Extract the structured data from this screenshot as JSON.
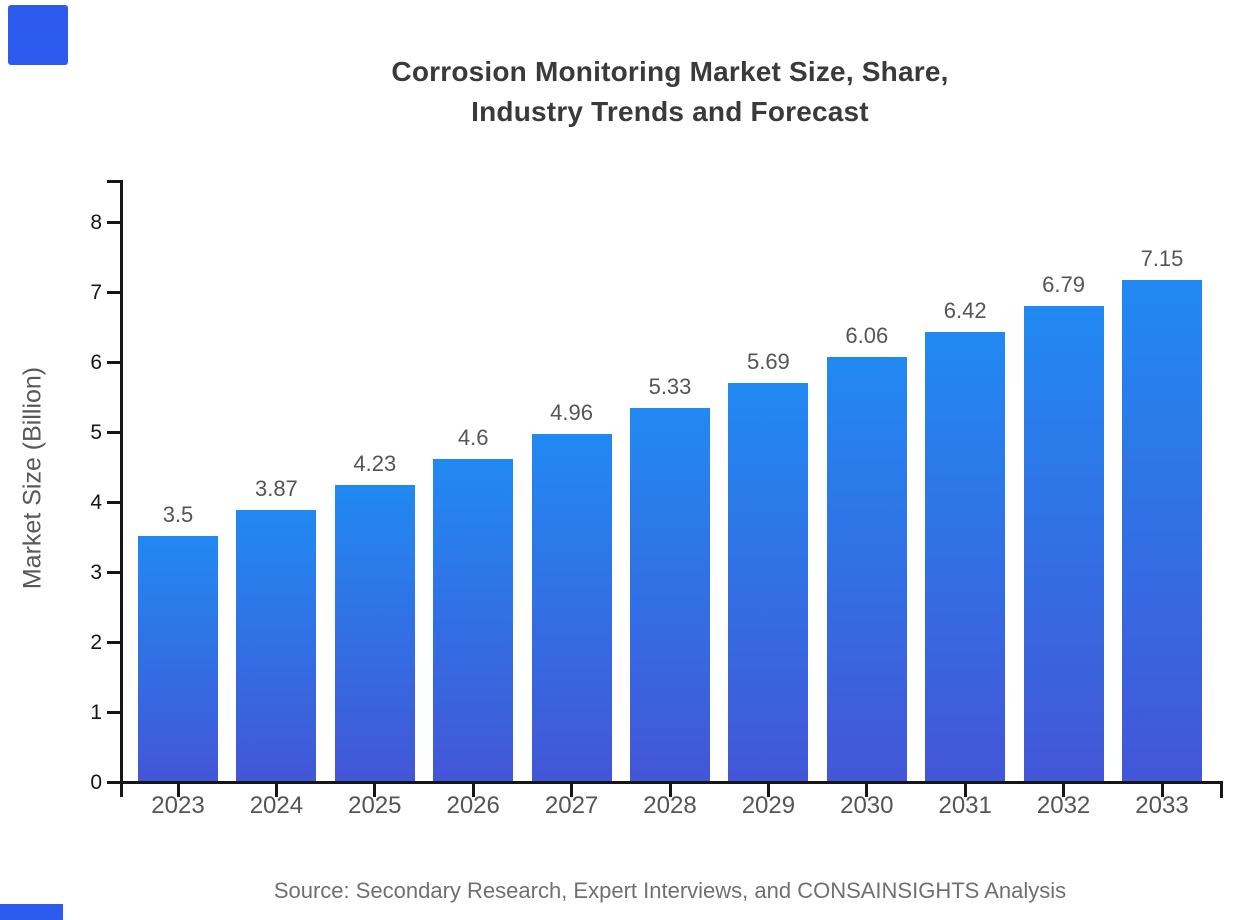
{
  "page": {
    "background_color": "#ffffff",
    "brand_color": "#2D5BEE"
  },
  "chart_data": {
    "type": "bar",
    "title": "Corrosion Monitoring Market Size, Share, Industry Trends and Forecast",
    "title_lines": [
      "Corrosion Monitoring Market Size, Share,",
      "Industry Trends and Forecast"
    ],
    "categories": [
      "2023",
      "2024",
      "2025",
      "2026",
      "2027",
      "2028",
      "2029",
      "2030",
      "2031",
      "2032",
      "2033"
    ],
    "values": [
      3.5,
      3.87,
      4.23,
      4.6,
      4.96,
      5.33,
      5.69,
      6.06,
      6.42,
      6.79,
      7.15
    ],
    "value_labels": [
      "3.5",
      "3.87",
      "4.23",
      "4.6",
      "4.96",
      "5.33",
      "5.69",
      "6.06",
      "6.42",
      "6.79",
      "7.15"
    ],
    "xlabel": "",
    "ylabel": "Market Size (Billion)",
    "yticks": [
      0,
      1,
      2,
      3,
      4,
      5,
      6,
      7,
      8
    ],
    "ylim": [
      0,
      8.6
    ],
    "grid": false,
    "legend": false,
    "bar_gradient_top": "#2189F2",
    "bar_gradient_bottom": "#4356D7",
    "title_color": "#3A3A3A",
    "axis_color": "#161616",
    "value_label_color": "#555555",
    "category_label_color": "#555555",
    "ylabel_color": "#585858"
  },
  "footer": {
    "source": "Source: Secondary Research, Expert Interviews, and CONSAINSIGHTS Analysis",
    "color": "#707070"
  }
}
